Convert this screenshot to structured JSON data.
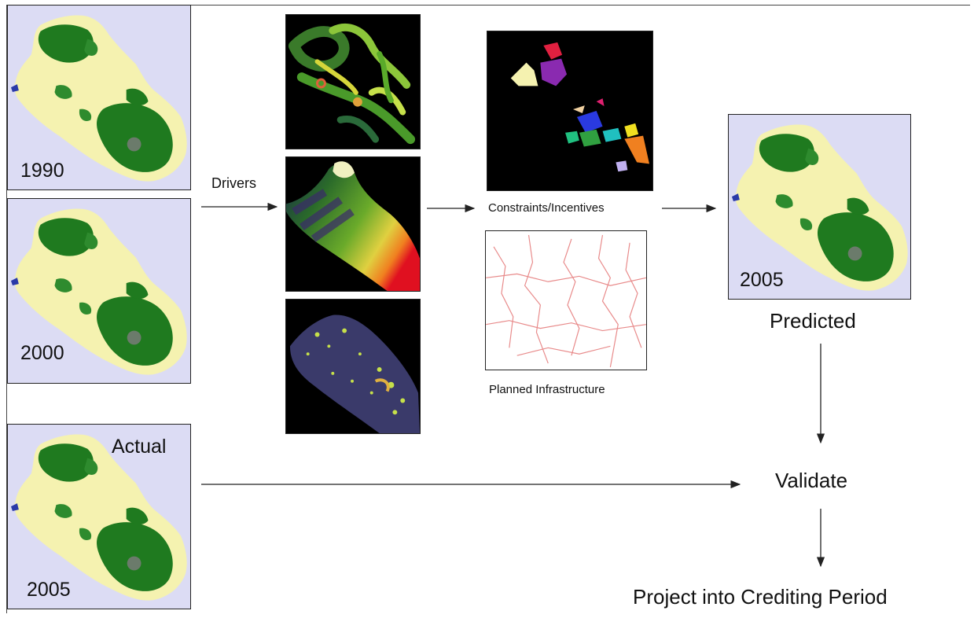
{
  "panels": {
    "map_1990": {
      "year": "1990"
    },
    "map_2000": {
      "year": "2000"
    },
    "map_2005_actual": {
      "year": "2005",
      "tag": "Actual"
    },
    "map_2005_predicted": {
      "year": "2005"
    }
  },
  "labels": {
    "drivers": "Drivers",
    "constraints": "Constraints/Incentives",
    "infrastructure": "Planned Infrastructure",
    "predicted": "Predicted",
    "validate": "Validate",
    "project": "Project into Crediting Period"
  },
  "colors": {
    "map_background": "#dcdcf4",
    "forest": "#1f7a1f",
    "non_forest": "#f5f2b0",
    "roads": "#e88a8a"
  }
}
